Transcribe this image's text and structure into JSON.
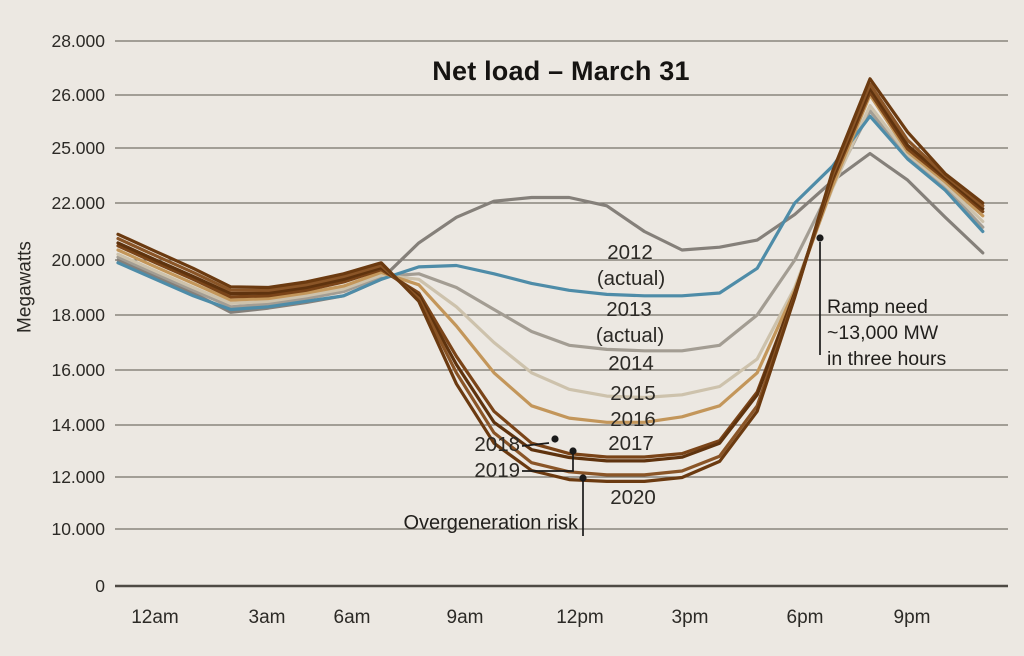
{
  "chart_data": {
    "type": "line",
    "title": "Net load – March 31",
    "ylabel": "Megawatts",
    "xlabel": "",
    "grid": true,
    "legend_position": "inline labels next to curves",
    "x_points": "24 hourly values per series, from 12am (index 0) to 11pm (index 23)",
    "x_axis_ticks": [
      "12am",
      "3am",
      "6am",
      "9am",
      "12pm",
      "3pm",
      "6pm",
      "9pm"
    ],
    "y_axis_ticks": [
      {
        "label": "28.000",
        "value": 28000
      },
      {
        "label": "26.000",
        "value": 26000
      },
      {
        "label": "25.000",
        "value": 25000
      },
      {
        "label": "22.000",
        "value": 22000
      },
      {
        "label": "20.000",
        "value": 20000
      },
      {
        "label": "18.000",
        "value": 18000
      },
      {
        "label": "16.000",
        "value": 16000
      },
      {
        "label": "14.000",
        "value": 14000
      },
      {
        "label": "12.000",
        "value": 12000
      },
      {
        "label": "10.000",
        "value": 10000
      },
      {
        "label": "0",
        "value": 0
      }
    ],
    "series": [
      {
        "name": "2012",
        "suffix": "(actual)",
        "color": "#85807a",
        "values": [
          20000,
          19400,
          18800,
          18100,
          18250,
          18450,
          18700,
          19300,
          20600,
          21500,
          22100,
          22300,
          22300,
          21900,
          21000,
          20350,
          20450,
          20700,
          21600,
          23200,
          24700,
          23250,
          21500,
          20250
        ]
      },
      {
        "name": "2013",
        "suffix": "(actual)",
        "color": "#4e8ca8",
        "values": [
          19900,
          19300,
          18700,
          18200,
          18300,
          18500,
          18700,
          19300,
          19750,
          19800,
          19500,
          19150,
          18900,
          18750,
          18700,
          18700,
          18800,
          19700,
          22000,
          24000,
          25600,
          24400,
          22700,
          21000
        ]
      },
      {
        "name": "2014",
        "suffix": "",
        "color": "#a39d93",
        "values": [
          20100,
          19500,
          18900,
          18300,
          18400,
          18600,
          18850,
          19400,
          19500,
          19000,
          18200,
          17400,
          16900,
          16750,
          16700,
          16700,
          16900,
          18000,
          20000,
          23000,
          25700,
          24500,
          22850,
          21150
        ]
      },
      {
        "name": "2015",
        "suffix": "",
        "color": "#cdc2ac",
        "values": [
          20200,
          19600,
          19000,
          18420,
          18500,
          18700,
          18950,
          19450,
          19300,
          18300,
          17000,
          15900,
          15300,
          15050,
          15000,
          15100,
          15400,
          16400,
          19000,
          22800,
          25800,
          24650,
          23000,
          21350
        ]
      },
      {
        "name": "2016",
        "suffix": "",
        "color": "#c3965a",
        "values": [
          20350,
          19750,
          19150,
          18540,
          18600,
          18800,
          19050,
          19550,
          19100,
          17600,
          15900,
          14700,
          14250,
          14100,
          14100,
          14300,
          14700,
          15900,
          18900,
          22900,
          26000,
          24800,
          23150,
          21550
        ]
      },
      {
        "name": "2017",
        "suffix": "",
        "color": "#7a4418",
        "values": [
          20500,
          19900,
          19300,
          18660,
          18700,
          18900,
          19200,
          19650,
          18800,
          16500,
          14500,
          13300,
          12900,
          12770,
          12770,
          12900,
          13400,
          15200,
          18800,
          23200,
          26100,
          24950,
          23300,
          21700
        ]
      },
      {
        "name": "2018",
        "suffix": "",
        "color": "#5f330e",
        "values": [
          20600,
          20000,
          19400,
          18780,
          18800,
          19000,
          19300,
          19720,
          18700,
          16200,
          14100,
          13050,
          12750,
          12620,
          12620,
          12760,
          13300,
          15100,
          18800,
          23350,
          26250,
          25050,
          23400,
          21800
        ]
      },
      {
        "name": "2019",
        "suffix": "",
        "color": "#8a5527",
        "values": [
          20750,
          20150,
          19550,
          18900,
          18900,
          19100,
          19400,
          19800,
          18600,
          15900,
          13700,
          12550,
          12200,
          12080,
          12080,
          12230,
          12800,
          14700,
          18700,
          23500,
          26400,
          25150,
          23500,
          21900
        ]
      },
      {
        "name": "2020",
        "suffix": "",
        "color": "#6b3a10",
        "values": [
          20900,
          20300,
          19700,
          19020,
          19000,
          19200,
          19500,
          19900,
          18500,
          15500,
          13300,
          12250,
          11900,
          11830,
          11830,
          11980,
          12600,
          14500,
          18650,
          23700,
          26600,
          25300,
          23600,
          22000
        ]
      }
    ]
  },
  "inline_labels": {
    "y2012": "2012",
    "y2012_suffix": "(actual)",
    "y2013": "2013",
    "y2013_suffix": "(actual)",
    "y2014": "2014",
    "y2015": "2015",
    "y2016": "2016",
    "y2017": "2017",
    "y2018": "2018",
    "y2019": "2019",
    "y2020": "2020"
  },
  "annotations": {
    "ramp": {
      "lines": [
        "Ramp need",
        "~13,000 MW",
        "in three hours"
      ]
    },
    "overgeneration": "Overgeneration risk"
  },
  "colors": {
    "background": "#ECE8E2",
    "gridline": "#76726a",
    "baseline": "#4e4a44",
    "text": "#2c2a26",
    "annotation_marker": "#1a1a1a"
  }
}
